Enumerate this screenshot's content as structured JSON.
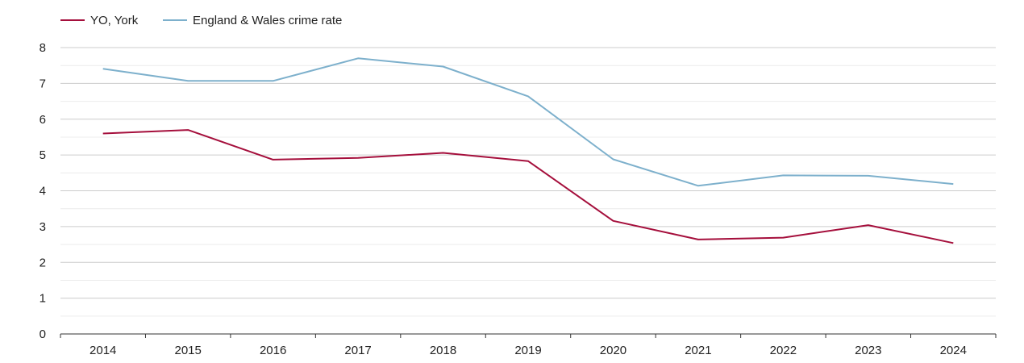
{
  "chart_data": {
    "type": "line",
    "title": "",
    "xlabel": "",
    "ylabel": "",
    "categories": [
      "2014",
      "2015",
      "2016",
      "2017",
      "2018",
      "2019",
      "2020",
      "2021",
      "2022",
      "2023",
      "2024"
    ],
    "series": [
      {
        "name": "YO, York",
        "color": "#a50f3c",
        "values": [
          5.6,
          5.7,
          4.87,
          4.92,
          5.06,
          4.83,
          3.16,
          2.64,
          2.69,
          3.04,
          2.54
        ]
      },
      {
        "name": "England & Wales crime rate",
        "color": "#7db0cc",
        "values": [
          7.41,
          7.07,
          7.07,
          7.7,
          7.47,
          6.64,
          4.88,
          4.14,
          4.43,
          4.42,
          4.19
        ]
      }
    ],
    "ylim": [
      0,
      8
    ],
    "yticks": [
      "0",
      "1",
      "2",
      "3",
      "4",
      "5",
      "6",
      "7",
      "8"
    ],
    "grid": true,
    "legend_position": "top-left"
  }
}
